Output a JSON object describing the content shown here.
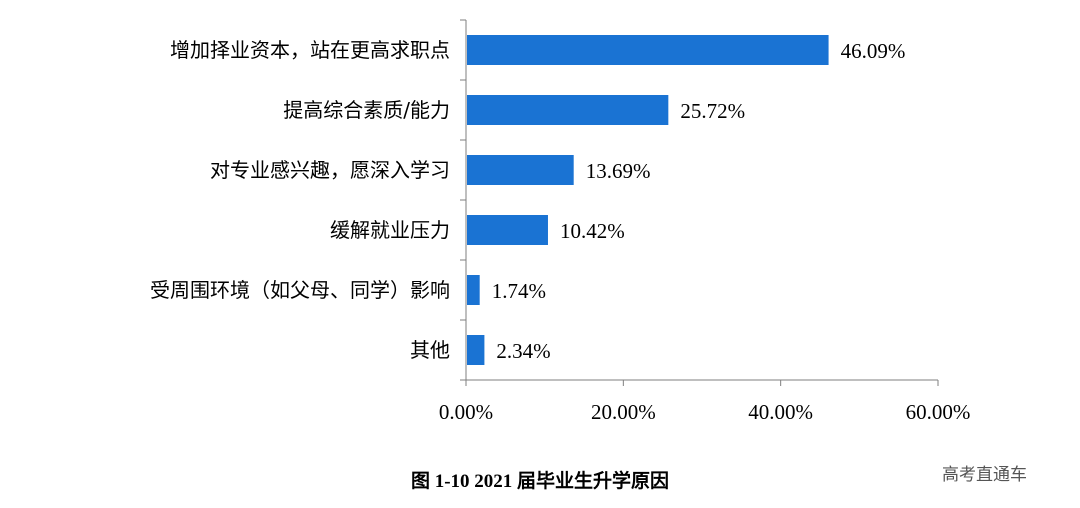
{
  "chart_data": {
    "type": "bar",
    "orientation": "horizontal",
    "categories": [
      "增加择业资本，站在更高求职点",
      "提高综合素质/能力",
      "对专业感兴趣，愿深入学习",
      "缓解就业压力",
      "受周围环境（如父母、同学）影响",
      "其他"
    ],
    "values": [
      46.09,
      25.72,
      13.69,
      10.42,
      1.74,
      2.34
    ],
    "value_labels": [
      "46.09%",
      "25.72%",
      "13.69%",
      "10.42%",
      "1.74%",
      "2.34%"
    ],
    "xlim": [
      0,
      60
    ],
    "xticks": [
      0,
      20,
      40,
      60
    ],
    "xtick_labels": [
      "0.00%",
      "20.00%",
      "40.00%",
      "60.00%"
    ],
    "grid": false,
    "legend": "none",
    "bar_color": "#1a73d3"
  },
  "caption": "图 1-10    2021 届毕业生升学原因",
  "watermark": "高考直通车"
}
